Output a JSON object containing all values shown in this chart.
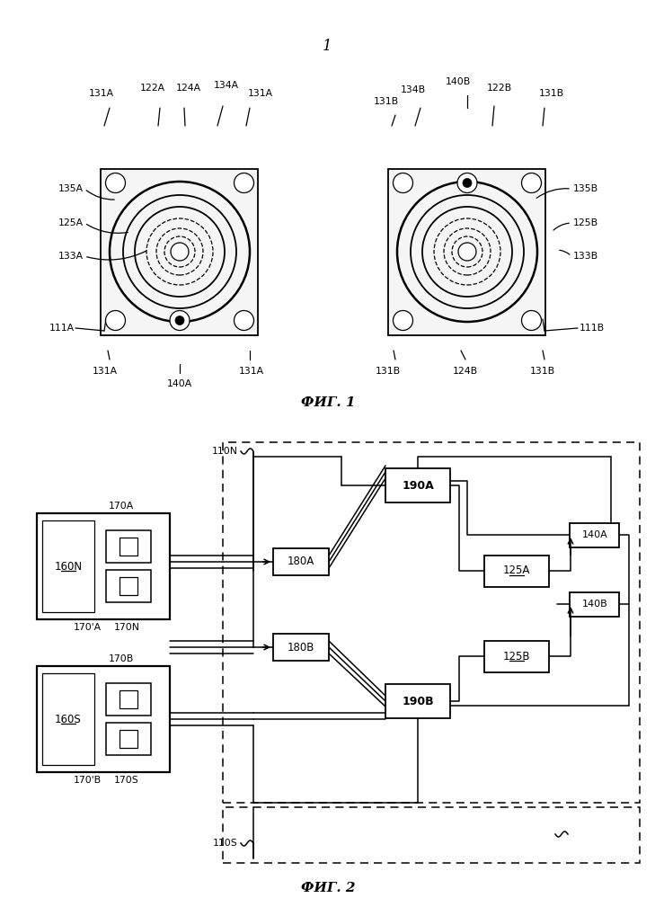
{
  "bg_color": "#ffffff",
  "fig_width": 7.29,
  "fig_height": 9.99,
  "fig1_caption": "ФИГ. 1",
  "fig2_caption": "ФИГ. 2",
  "page_number": "1"
}
